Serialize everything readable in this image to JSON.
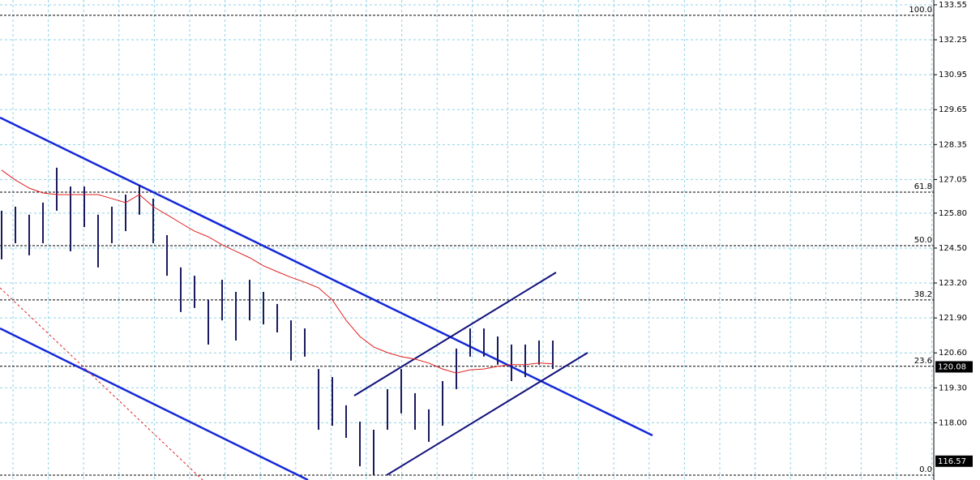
{
  "chart_data": {
    "type": "ohlc",
    "ylim": [
      115.87,
      133.73
    ],
    "yticks": [
      133.55,
      132.25,
      130.95,
      129.65,
      128.35,
      127.05,
      {
        "value": 125.8,
        "label": "125.80"
      },
      {
        "value": 124.5,
        "label": "124.50"
      },
      {
        "value": 123.2,
        "label": "123.20"
      },
      {
        "value": 121.9,
        "label": "121.90"
      },
      {
        "value": 120.6,
        "label": "120.60"
      },
      {
        "value": 119.3,
        "label": "119.30"
      },
      {
        "value": 118,
        "label": "118.00"
      }
    ],
    "grid": true,
    "high": [
      125.89,
      126.04,
      125.74,
      126.19,
      127.49,
      126.79,
      126.79,
      125.74,
      126.04,
      126.49,
      126.85,
      126.34,
      124.98,
      123.78,
      123.47,
      122.57,
      123.32,
      122.87,
      123.32,
      122.87,
      122.42,
      121.81,
      121.51,
      120.0,
      119.7,
      118.65,
      118.04,
      117.74,
      119.25,
      120.0,
      119.1,
      118.5,
      119.55,
      120.76,
      121.51,
      121.51,
      121.21,
      120.91,
      120.91,
      121.06,
      121.06
    ],
    "low": [
      124.08,
      124.68,
      124.23,
      124.68,
      125.89,
      124.38,
      125.28,
      123.78,
      124.68,
      125.13,
      125.74,
      124.68,
      123.47,
      122.12,
      122.27,
      120.91,
      121.81,
      121.06,
      121.81,
      121.66,
      121.36,
      120.31,
      120.46,
      117.74,
      117.89,
      117.44,
      116.38,
      116.05,
      117.74,
      118.35,
      117.74,
      117.29,
      117.89,
      119.25,
      120.46,
      120.46,
      120.16,
      119.55,
      119.7,
      120.16,
      120.0
    ],
    "bar_color": "#1a1a5e",
    "moving_average": {
      "color": "#e02020",
      "values": [
        127.4,
        127.03,
        126.73,
        126.55,
        126.49,
        126.49,
        126.49,
        126.49,
        126.34,
        126.19,
        126.49,
        126.04,
        125.74,
        125.43,
        125.13,
        124.92,
        124.62,
        124.38,
        124.14,
        123.84,
        123.62,
        123.41,
        123.23,
        123.02,
        122.57,
        121.81,
        121.21,
        120.82,
        120.61,
        120.46,
        120.37,
        120.22,
        120.0,
        119.85,
        119.97,
        120.0,
        120.1,
        120.16,
        120.16,
        120.22,
        120.19
      ]
    },
    "fibonacci": [
      {
        "label": "100.0",
        "price": 133.16
      },
      {
        "label": "61.8",
        "price": 126.58
      },
      {
        "label": "50.0",
        "price": 124.59
      },
      {
        "label": "38.2",
        "price": 122.57
      },
      {
        "label": "23.6",
        "price": 120.1
      },
      {
        "label": "0.0",
        "price": 116.05
      }
    ],
    "price_labels": [
      120.08,
      116.57
    ]
  }
}
